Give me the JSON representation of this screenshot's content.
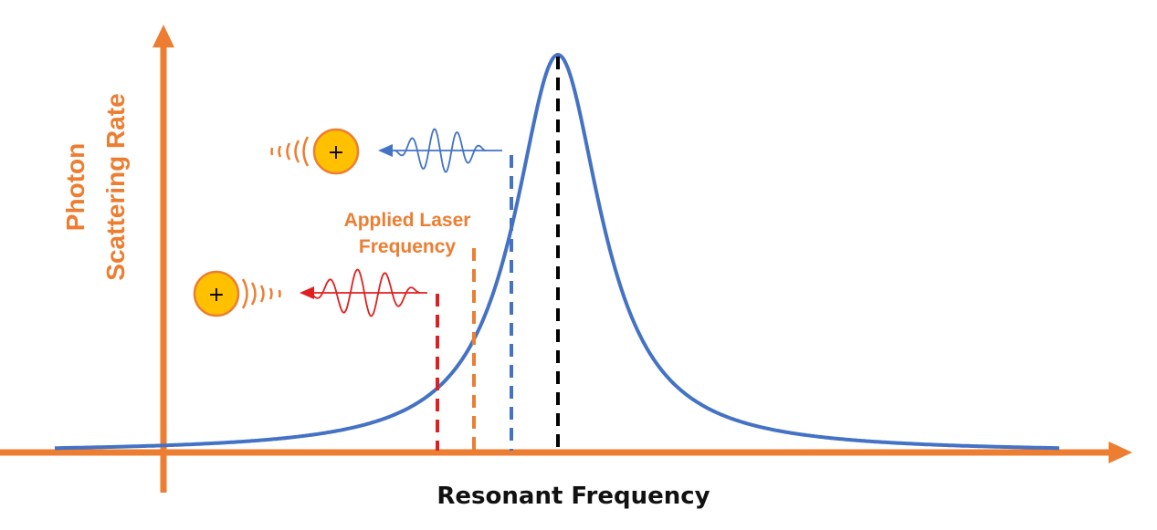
{
  "labels": {
    "y_axis_line1": "Photon",
    "y_axis_line2": "Scattering Rate",
    "x_axis": "Resonant Frequency",
    "laser_line1": "Applied Laser",
    "laser_line2": "Frequency"
  },
  "ion_symbol": "+",
  "colors": {
    "axis": "#ED7D31",
    "curve": "#4472C4",
    "blue_photon": "#4472C4",
    "red_photon": "#E02020",
    "resonance_marker": "#000000",
    "laser_marker": "#ED7D31",
    "ion_fill": "#FFC000",
    "ion_stroke": "#ED7D31"
  }
}
